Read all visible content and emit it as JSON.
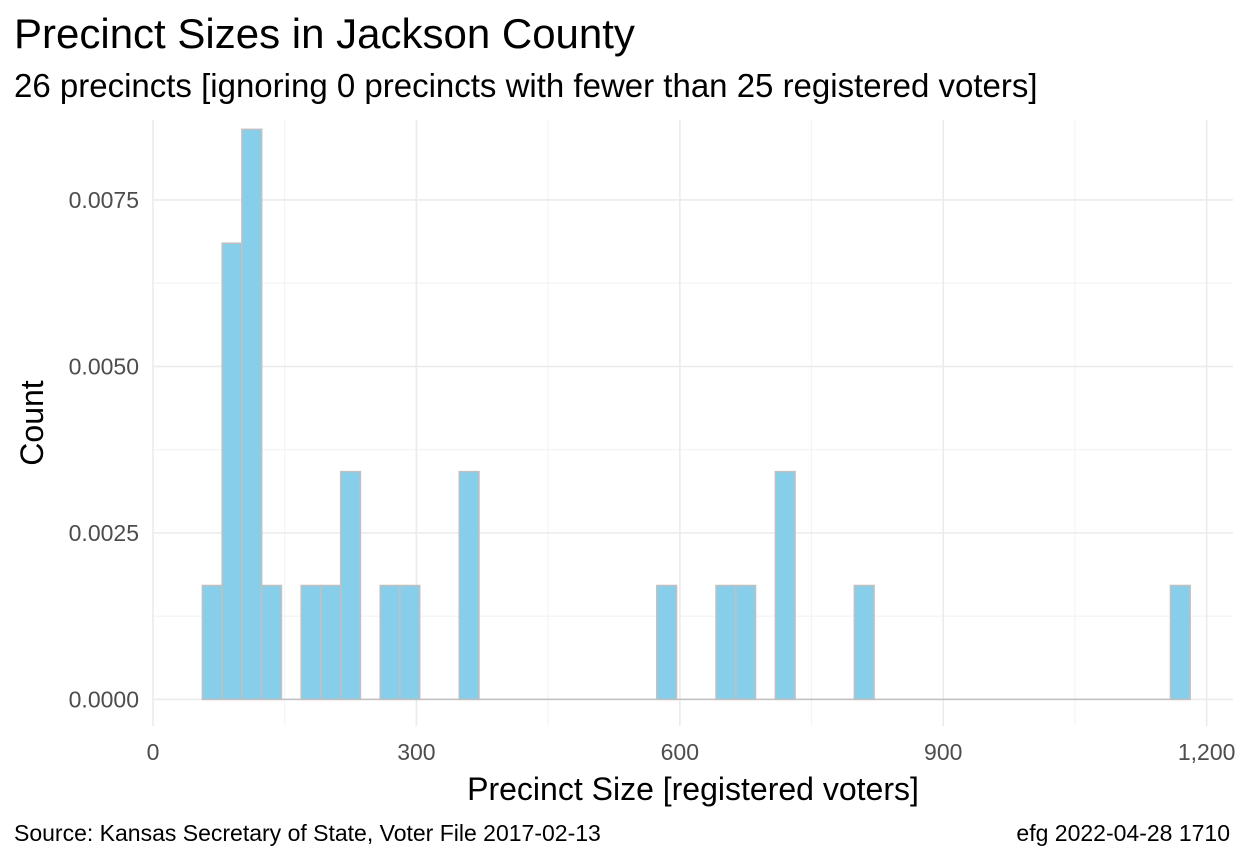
{
  "title": "Precinct Sizes in Jackson County",
  "subtitle": "26 precincts [ignoring 0 precincts with fewer than 25 registered voters]",
  "caption_left": "Source:  Kansas Secretary of State, Voter File  2017-02-13",
  "caption_right": "efg 2022-04-28 1710",
  "colors": {
    "bar_fill": "#87ceeb",
    "bar_stroke": "#c0c0c0",
    "grid_major": "#ebebeb",
    "grid_minor": "#f4f4f4"
  },
  "chart_data": {
    "type": "bar",
    "xlabel": "Precinct Size [registered voters]",
    "ylabel": "Count",
    "xlim": [
      0,
      1230
    ],
    "ylim": [
      -0.0004,
      0.0087
    ],
    "x_ticks": [
      0,
      300,
      600,
      900,
      1200
    ],
    "x_tick_labels": [
      "0",
      "300",
      "600",
      "900",
      "1,200"
    ],
    "y_ticks": [
      0,
      0.0025,
      0.005,
      0.0075
    ],
    "y_tick_labels": [
      "0.0000",
      "0.0025",
      "0.0050",
      "0.0075"
    ],
    "bin_width": 22.5,
    "bars": [
      {
        "x": 67.5,
        "y": 0.00171
      },
      {
        "x": 90,
        "y": 0.00685
      },
      {
        "x": 112.5,
        "y": 0.00856
      },
      {
        "x": 135,
        "y": 0.00171
      },
      {
        "x": 180,
        "y": 0.00171
      },
      {
        "x": 202.5,
        "y": 0.00171
      },
      {
        "x": 225,
        "y": 0.00342
      },
      {
        "x": 270,
        "y": 0.00171
      },
      {
        "x": 292.5,
        "y": 0.00171
      },
      {
        "x": 360,
        "y": 0.00342
      },
      {
        "x": 585,
        "y": 0.00171
      },
      {
        "x": 652.5,
        "y": 0.00171
      },
      {
        "x": 675,
        "y": 0.00171
      },
      {
        "x": 720,
        "y": 0.00342
      },
      {
        "x": 810,
        "y": 0.00171
      },
      {
        "x": 1170,
        "y": 0.00171
      }
    ],
    "grid": true
  }
}
